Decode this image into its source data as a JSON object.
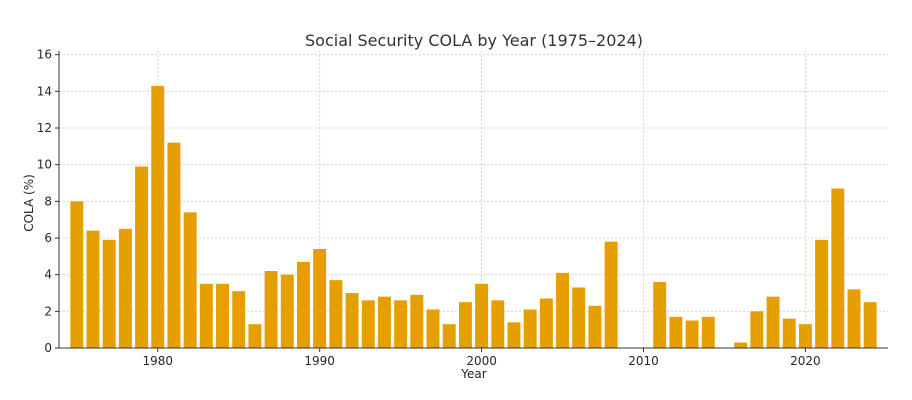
{
  "chart_data": {
    "type": "bar",
    "title": "Social Security COLA by Year (1975–2024)",
    "xlabel": "Year",
    "ylabel": "COLA (%)",
    "bar_color": "#E69F00",
    "xlim": [
      1973.9,
      2025.1
    ],
    "ylim": [
      0,
      16.2
    ],
    "xticks": [
      1980,
      1990,
      2000,
      2010,
      2020
    ],
    "yticks": [
      0,
      2,
      4,
      6,
      8,
      10,
      12,
      14,
      16
    ],
    "grid": true,
    "x": [
      1975,
      1976,
      1977,
      1978,
      1979,
      1980,
      1981,
      1982,
      1983,
      1984,
      1985,
      1986,
      1987,
      1988,
      1989,
      1990,
      1991,
      1992,
      1993,
      1994,
      1995,
      1996,
      1997,
      1998,
      1999,
      2000,
      2001,
      2002,
      2003,
      2004,
      2005,
      2006,
      2007,
      2008,
      2009,
      2010,
      2011,
      2012,
      2013,
      2014,
      2015,
      2016,
      2017,
      2018,
      2019,
      2020,
      2021,
      2022,
      2023,
      2024
    ],
    "values": [
      8.0,
      6.4,
      5.9,
      6.5,
      9.9,
      14.3,
      11.2,
      7.4,
      3.5,
      3.5,
      3.1,
      1.3,
      4.2,
      4.0,
      4.7,
      5.4,
      3.7,
      3.0,
      2.6,
      2.8,
      2.6,
      2.9,
      2.1,
      1.3,
      2.5,
      3.5,
      2.6,
      1.4,
      2.1,
      2.7,
      4.1,
      3.3,
      2.3,
      5.8,
      0,
      0,
      3.6,
      1.7,
      1.5,
      1.7,
      0,
      0.3,
      2.0,
      2.8,
      1.6,
      1.3,
      5.9,
      8.7,
      3.2,
      2.5
    ]
  }
}
